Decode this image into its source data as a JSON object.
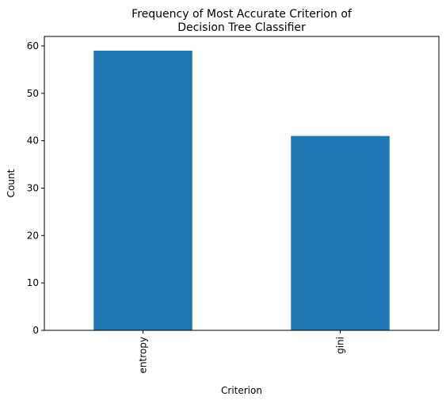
{
  "chart_data": {
    "type": "bar",
    "title": [
      "Frequency of Most Accurate Criterion of",
      "Decision Tree Classifier"
    ],
    "xlabel": "Criterion",
    "ylabel": "Count",
    "categories": [
      "entropy",
      "gini"
    ],
    "values": [
      59,
      41
    ],
    "ylim": [
      0,
      62
    ],
    "yticks": [
      0,
      10,
      20,
      30,
      40,
      50,
      60
    ],
    "bar_color": "#1f77b4",
    "grid": false,
    "legend": "none"
  }
}
